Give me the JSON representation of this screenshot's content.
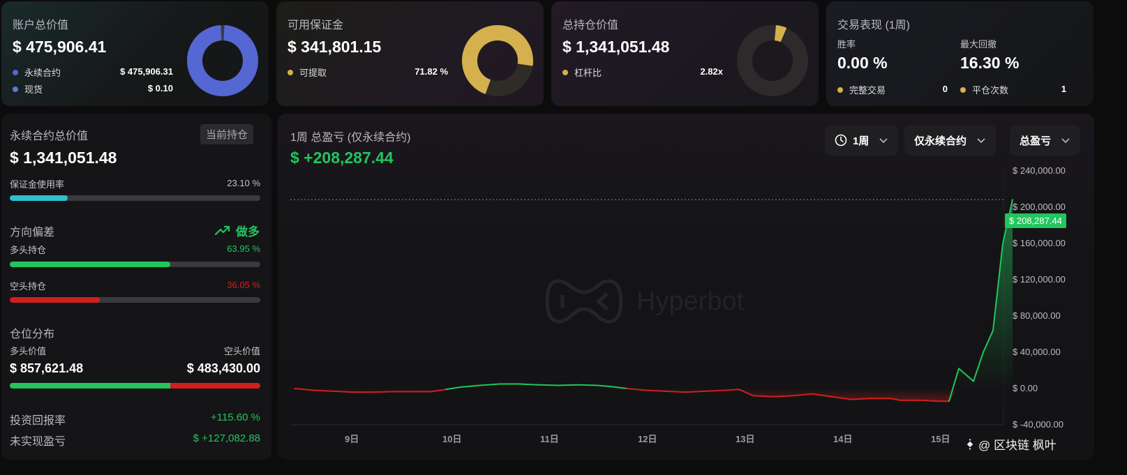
{
  "account": {
    "title": "账户总价值",
    "value": "$ 475,906.41",
    "rows": [
      {
        "label": "永续合约",
        "value": "$ 475,906.31",
        "color": "#5567d3"
      },
      {
        "label": "现货",
        "value": "$ 0.10",
        "color": "#4f7fd6"
      }
    ]
  },
  "margin": {
    "title": "可用保证金",
    "value": "$ 341,801.15",
    "row": {
      "label": "可提取",
      "value": "71.82 %",
      "color": "#d4b04f"
    },
    "fraction": 0.7182
  },
  "position": {
    "title": "总持仓价值",
    "value": "$ 1,341,051.48",
    "row": {
      "label": "杠杆比",
      "value": "2.82x",
      "color": "#d4b04f"
    }
  },
  "performance": {
    "title": "交易表现 (1周)",
    "winrate_label": "胜率",
    "winrate_value": "0.00 %",
    "drawdown_label": "最大回撤",
    "drawdown_value": "16.30 %",
    "rows": [
      {
        "label": "完整交易",
        "value": "0"
      },
      {
        "label": "平仓次数",
        "value": "1"
      }
    ],
    "dot_color": "#d4b04f"
  },
  "perp": {
    "title": "永续合约总价值",
    "badge": "当前持仓",
    "value": "$ 1,341,051.48",
    "margin_usage_label": "保证金使用率",
    "margin_usage_value": "23.10 %",
    "margin_usage_fraction": 0.231,
    "bias_label": "方向偏差",
    "bias_value": "做多",
    "long_label": "多头持仓",
    "long_value": "63.95 %",
    "long_fraction": 0.6395,
    "short_label": "空头持仓",
    "short_value": "36.05 %",
    "short_fraction": 0.3605,
    "distribution_label": "仓位分布",
    "long_value_label": "多头价值",
    "short_value_label": "空头价值",
    "long_amount": "$ 857,621.48",
    "short_amount": "$ 483,430.00",
    "roi_label": "投资回报率",
    "roi_value": "+115.60 %",
    "unrealized_label": "未实现盈亏",
    "unrealized_value": "$ +127,082.88"
  },
  "pnl": {
    "title": "1周 总盈亏 (仅永续合约)",
    "value": "$ +208,287.44",
    "filters": [
      "1周",
      "仅永续合约",
      "总盈亏"
    ],
    "watermark": "Hyperbot",
    "current_tag": "$ 208,287.44",
    "footer_credit": "@ 区块链 枫叶"
  },
  "chart_data": {
    "type": "line",
    "x_labels": [
      "9日",
      "10日",
      "11日",
      "12日",
      "13日",
      "14日",
      "15日"
    ],
    "y_ticks": [
      "$ 240,000.00",
      "$ 200,000.00",
      "$ 160,000.00",
      "$ 120,000.00",
      "$ 80,000.00",
      "$ 40,000.00",
      "$ 0.00",
      "$ -40,000.00"
    ],
    "y_tick_values": [
      240000,
      200000,
      160000,
      120000,
      80000,
      40000,
      0,
      -40000
    ],
    "ylim": [
      -40000,
      240000
    ],
    "xlim": [
      8.4,
      15.6
    ],
    "series": [
      {
        "x": [
          8.4,
          8.6,
          8.8,
          9.0,
          9.2,
          9.4,
          9.6,
          9.8,
          9.95,
          10.1,
          10.3,
          10.5,
          10.7,
          10.9,
          11.1,
          11.3,
          11.5,
          11.65,
          11.8,
          12.0,
          12.2,
          12.4,
          12.6,
          12.8,
          12.95,
          13.1,
          13.3,
          13.5,
          13.7,
          13.9,
          14.1,
          14.3,
          14.5,
          14.6,
          14.8,
          15.0,
          15.1,
          15.2,
          15.35,
          15.45,
          15.55,
          15.65,
          15.75
        ],
        "y": [
          0,
          -2000,
          -3000,
          -4000,
          -4000,
          -3500,
          -3500,
          -3500,
          -1000,
          1500,
          3500,
          5000,
          5000,
          4000,
          3500,
          4000,
          3500,
          2000,
          0,
          -2000,
          -3000,
          -4000,
          -3000,
          -2000,
          -1000,
          -8000,
          -9000,
          -8000,
          -6000,
          -9000,
          -12000,
          -11000,
          -11000,
          -13000,
          -13000,
          -14000,
          -14000,
          22000,
          8000,
          40000,
          64000,
          160000,
          208287
        ]
      }
    ],
    "colors": {
      "up": "#22c55e",
      "down": "#d11f1f"
    },
    "grid": false,
    "current_value": 208287.44
  }
}
